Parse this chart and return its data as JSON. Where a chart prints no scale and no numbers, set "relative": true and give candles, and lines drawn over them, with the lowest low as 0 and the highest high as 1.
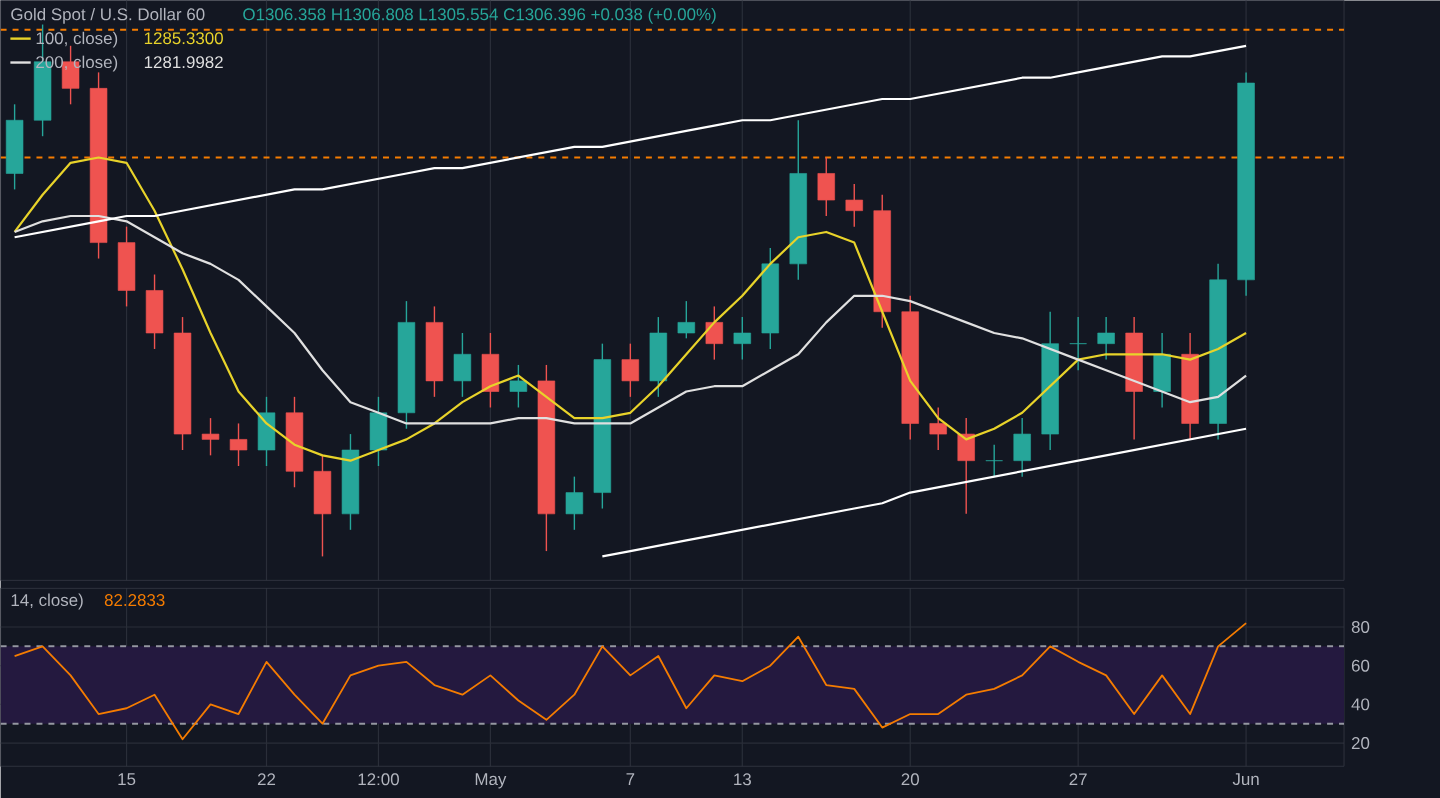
{
  "chart_data": [
    {
      "type": "candlestick",
      "title": "Gold Spot / U.S. Dollar  60",
      "subtitle": "O1306.358 H1306.808 L1305.554 C1306.396 +0.038 (+0.00%)",
      "relative": true,
      "tick_labels": false,
      "grid": "x",
      "legend": "top left",
      "categories": [
        null,
        null,
        null,
        null,
        null,
        null,
        null,
        null,
        null,
        null,
        null,
        null,
        null,
        null,
        null,
        null,
        null,
        null,
        null,
        null,
        null,
        null,
        null,
        null,
        null,
        null,
        null,
        null,
        null,
        null,
        null,
        null,
        null,
        null,
        null,
        null,
        null,
        null,
        null,
        null,
        null,
        null,
        null,
        null,
        null
      ],
      "ohlc": [
        [
          0.72,
          0.85,
          0.69,
          0.82
        ],
        [
          0.82,
          1.0,
          0.79,
          0.93
        ],
        [
          0.93,
          0.96,
          0.85,
          0.88
        ],
        [
          0.88,
          0.91,
          0.56,
          0.59
        ],
        [
          0.59,
          0.62,
          0.47,
          0.5
        ],
        [
          0.5,
          0.53,
          0.39,
          0.42
        ],
        [
          0.42,
          0.45,
          0.2,
          0.23
        ],
        [
          0.23,
          0.26,
          0.19,
          0.22
        ],
        [
          0.22,
          0.25,
          0.17,
          0.2
        ],
        [
          0.2,
          0.3,
          0.17,
          0.27
        ],
        [
          0.27,
          0.3,
          0.13,
          0.16
        ],
        [
          0.16,
          0.19,
          0.0,
          0.08
        ],
        [
          0.08,
          0.23,
          0.05,
          0.2
        ],
        [
          0.2,
          0.3,
          0.17,
          0.27
        ],
        [
          0.27,
          0.48,
          0.24,
          0.44
        ],
        [
          0.44,
          0.47,
          0.3,
          0.33
        ],
        [
          0.33,
          0.42,
          0.3,
          0.38
        ],
        [
          0.38,
          0.42,
          0.28,
          0.31
        ],
        [
          0.31,
          0.36,
          0.28,
          0.33
        ],
        [
          0.33,
          0.36,
          0.01,
          0.08
        ],
        [
          0.08,
          0.15,
          0.05,
          0.12
        ],
        [
          0.12,
          0.4,
          0.09,
          0.37
        ],
        [
          0.37,
          0.4,
          0.3,
          0.33
        ],
        [
          0.33,
          0.45,
          0.3,
          0.42
        ],
        [
          0.42,
          0.48,
          0.41,
          0.44
        ],
        [
          0.44,
          0.47,
          0.37,
          0.4
        ],
        [
          0.4,
          0.45,
          0.37,
          0.42
        ],
        [
          0.42,
          0.58,
          0.39,
          0.55
        ],
        [
          0.55,
          0.82,
          0.52,
          0.72
        ],
        [
          0.72,
          0.75,
          0.64,
          0.67
        ],
        [
          0.67,
          0.7,
          0.62,
          0.65
        ],
        [
          0.65,
          0.68,
          0.43,
          0.46
        ],
        [
          0.46,
          0.49,
          0.22,
          0.25
        ],
        [
          0.25,
          0.28,
          0.2,
          0.23
        ],
        [
          0.23,
          0.26,
          0.08,
          0.18
        ],
        [
          0.18,
          0.21,
          0.15,
          0.18
        ],
        [
          0.18,
          0.26,
          0.15,
          0.23
        ],
        [
          0.23,
          0.46,
          0.2,
          0.4
        ],
        [
          0.4,
          0.45,
          0.35,
          0.4
        ],
        [
          0.4,
          0.45,
          0.37,
          0.42
        ],
        [
          0.42,
          0.45,
          0.22,
          0.31
        ],
        [
          0.31,
          0.42,
          0.28,
          0.38
        ],
        [
          0.38,
          0.42,
          0.22,
          0.25
        ],
        [
          0.25,
          0.55,
          0.22,
          0.52
        ],
        [
          0.52,
          0.91,
          0.49,
          0.89
        ]
      ],
      "series": [
        {
          "type": "line",
          "name": "100, close)",
          "color": "#e8d32a",
          "values": [
            0.61,
            0.68,
            0.74,
            0.75,
            0.74,
            0.65,
            0.54,
            0.42,
            0.31,
            0.25,
            0.21,
            0.19,
            0.18,
            0.2,
            0.22,
            0.25,
            0.29,
            0.32,
            0.34,
            0.3,
            0.26,
            0.26,
            0.27,
            0.32,
            0.38,
            0.44,
            0.49,
            0.55,
            0.6,
            0.61,
            0.59,
            0.46,
            0.33,
            0.26,
            0.22,
            0.24,
            0.27,
            0.32,
            0.37,
            0.38,
            0.38,
            0.38,
            0.37,
            0.39,
            0.42
          ]
        },
        {
          "type": "line",
          "name": "200, close)",
          "color": "#e0e0e0",
          "values": [
            0.61,
            0.63,
            0.64,
            0.64,
            0.63,
            0.6,
            0.57,
            0.55,
            0.52,
            0.47,
            0.42,
            0.35,
            0.29,
            0.27,
            0.25,
            0.25,
            0.25,
            0.25,
            0.26,
            0.26,
            0.25,
            0.25,
            0.25,
            0.28,
            0.31,
            0.32,
            0.32,
            0.35,
            0.38,
            0.44,
            0.49,
            0.49,
            0.48,
            0.46,
            0.44,
            0.42,
            0.41,
            0.39,
            0.37,
            0.35,
            0.33,
            0.31,
            0.29,
            0.3,
            0.34
          ]
        },
        {
          "type": "line",
          "color": "#ffffff",
          "values": [
            0.6,
            0.61,
            0.62,
            0.63,
            0.64,
            0.64,
            0.65,
            0.66,
            0.67,
            0.68,
            0.69,
            0.69,
            0.7,
            0.71,
            0.72,
            0.73,
            0.73,
            0.74,
            0.75,
            0.76,
            0.77,
            0.77,
            0.78,
            0.79,
            0.8,
            0.81,
            0.82,
            0.82,
            0.83,
            0.84,
            0.85,
            0.86,
            0.86,
            0.87,
            0.88,
            0.89,
            0.9,
            0.9,
            0.91,
            0.92,
            0.93,
            0.94,
            0.94,
            0.95,
            0.96
          ]
        },
        {
          "type": "line",
          "color": "#ffffff",
          "values": [
            null,
            null,
            null,
            null,
            null,
            null,
            null,
            null,
            null,
            null,
            null,
            null,
            null,
            null,
            null,
            null,
            null,
            null,
            null,
            null,
            null,
            0.0,
            0.01,
            0.02,
            0.03,
            0.04,
            0.05,
            0.06,
            0.07,
            0.08,
            0.09,
            0.1,
            0.12,
            0.13,
            0.14,
            0.15,
            0.16,
            0.17,
            0.18,
            0.19,
            0.2,
            0.21,
            0.22,
            0.23,
            0.24
          ]
        }
      ],
      "annotations": [
        "1285.3300",
        "1281.9982"
      ],
      "ref_lines": [
        {
          "axis": "y",
          "value": 0.75,
          "color": "#f57c00",
          "line_style": "dashed"
        },
        {
          "axis": "y",
          "value": 0.99,
          "color": "#f57c00",
          "line_style": "dashed"
        }
      ]
    },
    {
      "type": "line",
      "title": "14, close)",
      "annotations": [
        "82.2833"
      ],
      "color": "#f57c00",
      "grid": true,
      "categories": [
        null,
        null,
        null,
        null,
        "15",
        null,
        null,
        null,
        null,
        "22",
        null,
        null,
        null,
        "12:00",
        null,
        null,
        null,
        "May",
        null,
        null,
        null,
        null,
        "7",
        null,
        null,
        null,
        "13",
        null,
        null,
        null,
        null,
        null,
        "20",
        null,
        null,
        null,
        null,
        null,
        "27",
        null,
        null,
        null,
        null,
        null,
        "Jun"
      ],
      "values": [
        65,
        70,
        55,
        35,
        38,
        45,
        22,
        40,
        35,
        62,
        45,
        30,
        55,
        60,
        62,
        50,
        45,
        55,
        42,
        32,
        45,
        70,
        55,
        65,
        38,
        55,
        52,
        60,
        75,
        50,
        48,
        28,
        35,
        35,
        45,
        48,
        55,
        70,
        62,
        55,
        35,
        55,
        35,
        70,
        82
      ],
      "ylim": [
        8,
        100
      ],
      "yticks": [
        20,
        40,
        60,
        80
      ],
      "bands": [
        {
          "axis": "y",
          "from": 30,
          "to": 70,
          "color": "#24193f"
        }
      ],
      "ref_lines": [
        {
          "axis": "y",
          "value": 30,
          "color": "#9598a1",
          "line_style": "dashed"
        },
        {
          "axis": "y",
          "value": 70,
          "color": "#9598a1",
          "line_style": "dashed"
        }
      ]
    }
  ]
}
